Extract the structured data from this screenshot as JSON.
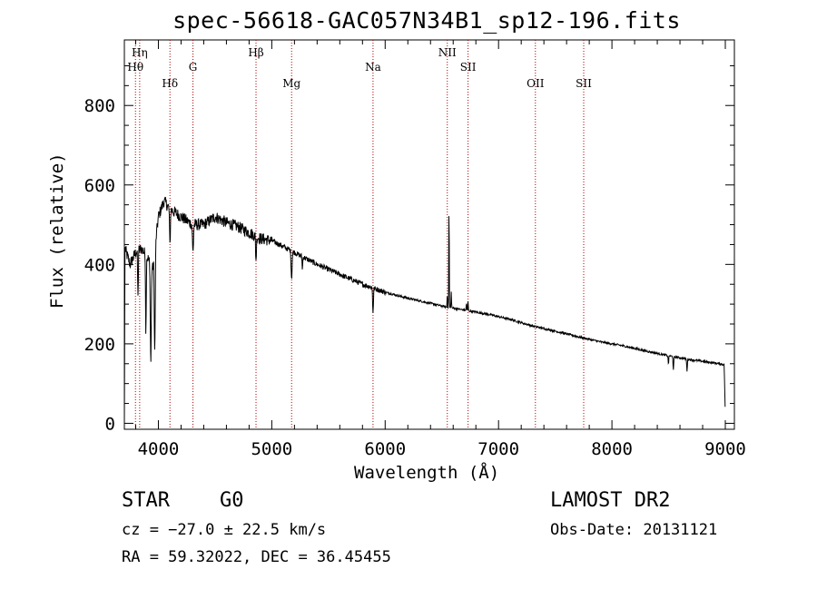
{
  "title": "spec-56618-GAC057N34B1_sp12-196.fits",
  "info": {
    "object_class": "STAR",
    "subclass": "G0",
    "survey": "LAMOST DR2",
    "cz": "cz = −27.0 ± 22.5 km/s",
    "obs_date": "Obs-Date: 20131121",
    "coords": "RA =  59.32022, DEC =  36.45455"
  },
  "chart_data": {
    "type": "line",
    "xlabel": "Wavelength (Å)",
    "ylabel": "Flux (relative)",
    "xlim": [
      3700,
      9080
    ],
    "ylim": [
      -15,
      965
    ],
    "xticks": [
      4000,
      5000,
      6000,
      7000,
      8000,
      9000
    ],
    "yticks": [
      0,
      200,
      400,
      600,
      800
    ],
    "line_color": "#000000",
    "marker_color": "#b00000",
    "lines": [
      {
        "name": "Hη",
        "x": 3835,
        "tier": 0
      },
      {
        "name": "Hθ",
        "x": 3798,
        "tier": 1
      },
      {
        "name": "Hδ",
        "x": 4102,
        "tier": 2
      },
      {
        "name": "G",
        "x": 4305,
        "tier": 1
      },
      {
        "name": "Hβ",
        "x": 4861,
        "tier": 0
      },
      {
        "name": "Mg",
        "x": 5175,
        "tier": 2
      },
      {
        "name": "Na",
        "x": 5893,
        "tier": 1
      },
      {
        "name": "NII",
        "x": 6548,
        "tier": 0
      },
      {
        "name": "SII",
        "x": 6731,
        "tier": 1
      },
      {
        "name": "OII",
        "x": 7325,
        "tier": 2
      },
      {
        "name": "SII",
        "x": 7751,
        "tier": 2
      }
    ],
    "continuum": [
      [
        3700,
        0
      ],
      [
        3705,
        440
      ],
      [
        3750,
        400
      ],
      [
        3800,
        430
      ],
      [
        3850,
        440
      ],
      [
        3900,
        420
      ],
      [
        3950,
        390
      ],
      [
        4000,
        520
      ],
      [
        4050,
        560
      ],
      [
        4100,
        540
      ],
      [
        4200,
        520
      ],
      [
        4300,
        500
      ],
      [
        4400,
        500
      ],
      [
        4500,
        520
      ],
      [
        4600,
        505
      ],
      [
        4700,
        495
      ],
      [
        4800,
        480
      ],
      [
        4900,
        465
      ],
      [
        5000,
        460
      ],
      [
        5200,
        430
      ],
      [
        5400,
        400
      ],
      [
        5600,
        375
      ],
      [
        5800,
        350
      ],
      [
        6000,
        330
      ],
      [
        6200,
        315
      ],
      [
        6400,
        302
      ],
      [
        6550,
        292
      ],
      [
        6700,
        285
      ],
      [
        6900,
        275
      ],
      [
        7100,
        262
      ],
      [
        7300,
        245
      ],
      [
        7500,
        232
      ],
      [
        7700,
        218
      ],
      [
        7900,
        205
      ],
      [
        8100,
        195
      ],
      [
        8300,
        182
      ],
      [
        8500,
        170
      ],
      [
        8700,
        160
      ],
      [
        8900,
        152
      ],
      [
        8990,
        148
      ],
      [
        9000,
        15
      ]
    ],
    "absorption_features": [
      [
        3820,
        120,
        4
      ],
      [
        3890,
        200,
        4
      ],
      [
        3933,
        250,
        6
      ],
      [
        3968,
        260,
        6
      ],
      [
        4102,
        90,
        5
      ],
      [
        4305,
        70,
        6
      ],
      [
        4861,
        60,
        5
      ],
      [
        5175,
        70,
        6
      ],
      [
        5270,
        30,
        4
      ],
      [
        5893,
        60,
        5
      ],
      [
        6563,
        20,
        4
      ],
      [
        8498,
        20,
        4
      ],
      [
        8542,
        35,
        4
      ],
      [
        8662,
        30,
        4
      ]
    ],
    "emission_features": [
      [
        6563,
        280,
        3
      ],
      [
        6583,
        40,
        3
      ],
      [
        6548,
        30,
        3
      ],
      [
        6731,
        25,
        3
      ],
      [
        6717,
        20,
        3
      ]
    ],
    "noise_amplitude": 30
  }
}
